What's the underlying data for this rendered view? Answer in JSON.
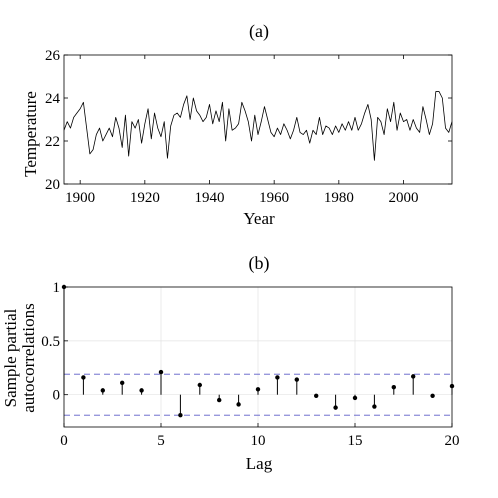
{
  "chart_data": [
    {
      "type": "line",
      "title": "(a)",
      "xlabel": "Year",
      "ylabel": "Temperature",
      "xlim": [
        1895,
        2015
      ],
      "ylim": [
        20,
        26
      ],
      "xticks": [
        1900,
        1920,
        1940,
        1960,
        1980,
        2000
      ],
      "yticks": [
        20,
        22,
        24,
        26
      ],
      "grid": false,
      "line_color": "#000000",
      "series": [
        {
          "x_start": 1895,
          "x_step": 1,
          "values": [
            22.5,
            22.9,
            22.6,
            23.1,
            23.3,
            23.5,
            23.8,
            22.6,
            21.4,
            21.6,
            22.3,
            22.6,
            22.0,
            22.3,
            22.6,
            22.2,
            23.1,
            22.6,
            21.7,
            23.2,
            21.3,
            22.9,
            22.6,
            23.0,
            21.9,
            22.8,
            23.5,
            22.1,
            23.3,
            22.6,
            22.2,
            22.9,
            21.2,
            22.7,
            23.2,
            23.3,
            23.1,
            23.7,
            24.1,
            23.0,
            24.0,
            23.4,
            23.2,
            22.9,
            23.1,
            23.7,
            22.8,
            23.4,
            22.9,
            23.8,
            22.0,
            23.5,
            22.5,
            22.6,
            22.8,
            23.8,
            23.4,
            22.9,
            22.0,
            23.2,
            22.3,
            22.9,
            23.6,
            23.0,
            22.4,
            22.2,
            22.6,
            22.3,
            22.8,
            22.5,
            22.1,
            22.5,
            23.1,
            22.4,
            22.3,
            22.5,
            21.9,
            22.5,
            22.3,
            23.1,
            22.3,
            22.7,
            22.6,
            22.3,
            22.7,
            22.4,
            22.8,
            22.5,
            22.9,
            22.5,
            23.1,
            22.5,
            22.8,
            23.3,
            23.7,
            23.0,
            21.1,
            23.1,
            22.9,
            22.3,
            23.5,
            22.9,
            23.8,
            22.5,
            23.3,
            22.9,
            23.0,
            22.5,
            23.0,
            22.6,
            22.4,
            23.6,
            23.0,
            22.3,
            22.8,
            24.3,
            24.3,
            24.0,
            22.6,
            22.4,
            22.9
          ]
        }
      ]
    },
    {
      "type": "stem",
      "title": "(b)",
      "xlabel": "Lag",
      "ylabel_lines": [
        "Sample partial",
        "autocorrelations"
      ],
      "xlim": [
        0,
        20
      ],
      "ylim": [
        -0.3,
        1
      ],
      "xticks": [
        0,
        5,
        10,
        15,
        20
      ],
      "yticks": [
        0,
        0.5,
        1
      ],
      "grid": true,
      "bounds": [
        0.19,
        -0.19
      ],
      "bounds_color": "#5a5ac8",
      "stem_color": "#000000",
      "series": [
        {
          "lags": [
            0,
            1,
            2,
            3,
            4,
            5,
            6,
            7,
            8,
            9,
            10,
            11,
            12,
            13,
            14,
            15,
            16,
            17,
            18,
            19,
            20
          ],
          "values": [
            1.0,
            0.16,
            0.04,
            0.11,
            0.04,
            0.21,
            -0.19,
            0.09,
            -0.05,
            -0.09,
            0.05,
            0.16,
            0.14,
            -0.01,
            -0.12,
            -0.03,
            -0.11,
            0.07,
            0.17,
            -0.01,
            0.08
          ]
        }
      ]
    }
  ]
}
